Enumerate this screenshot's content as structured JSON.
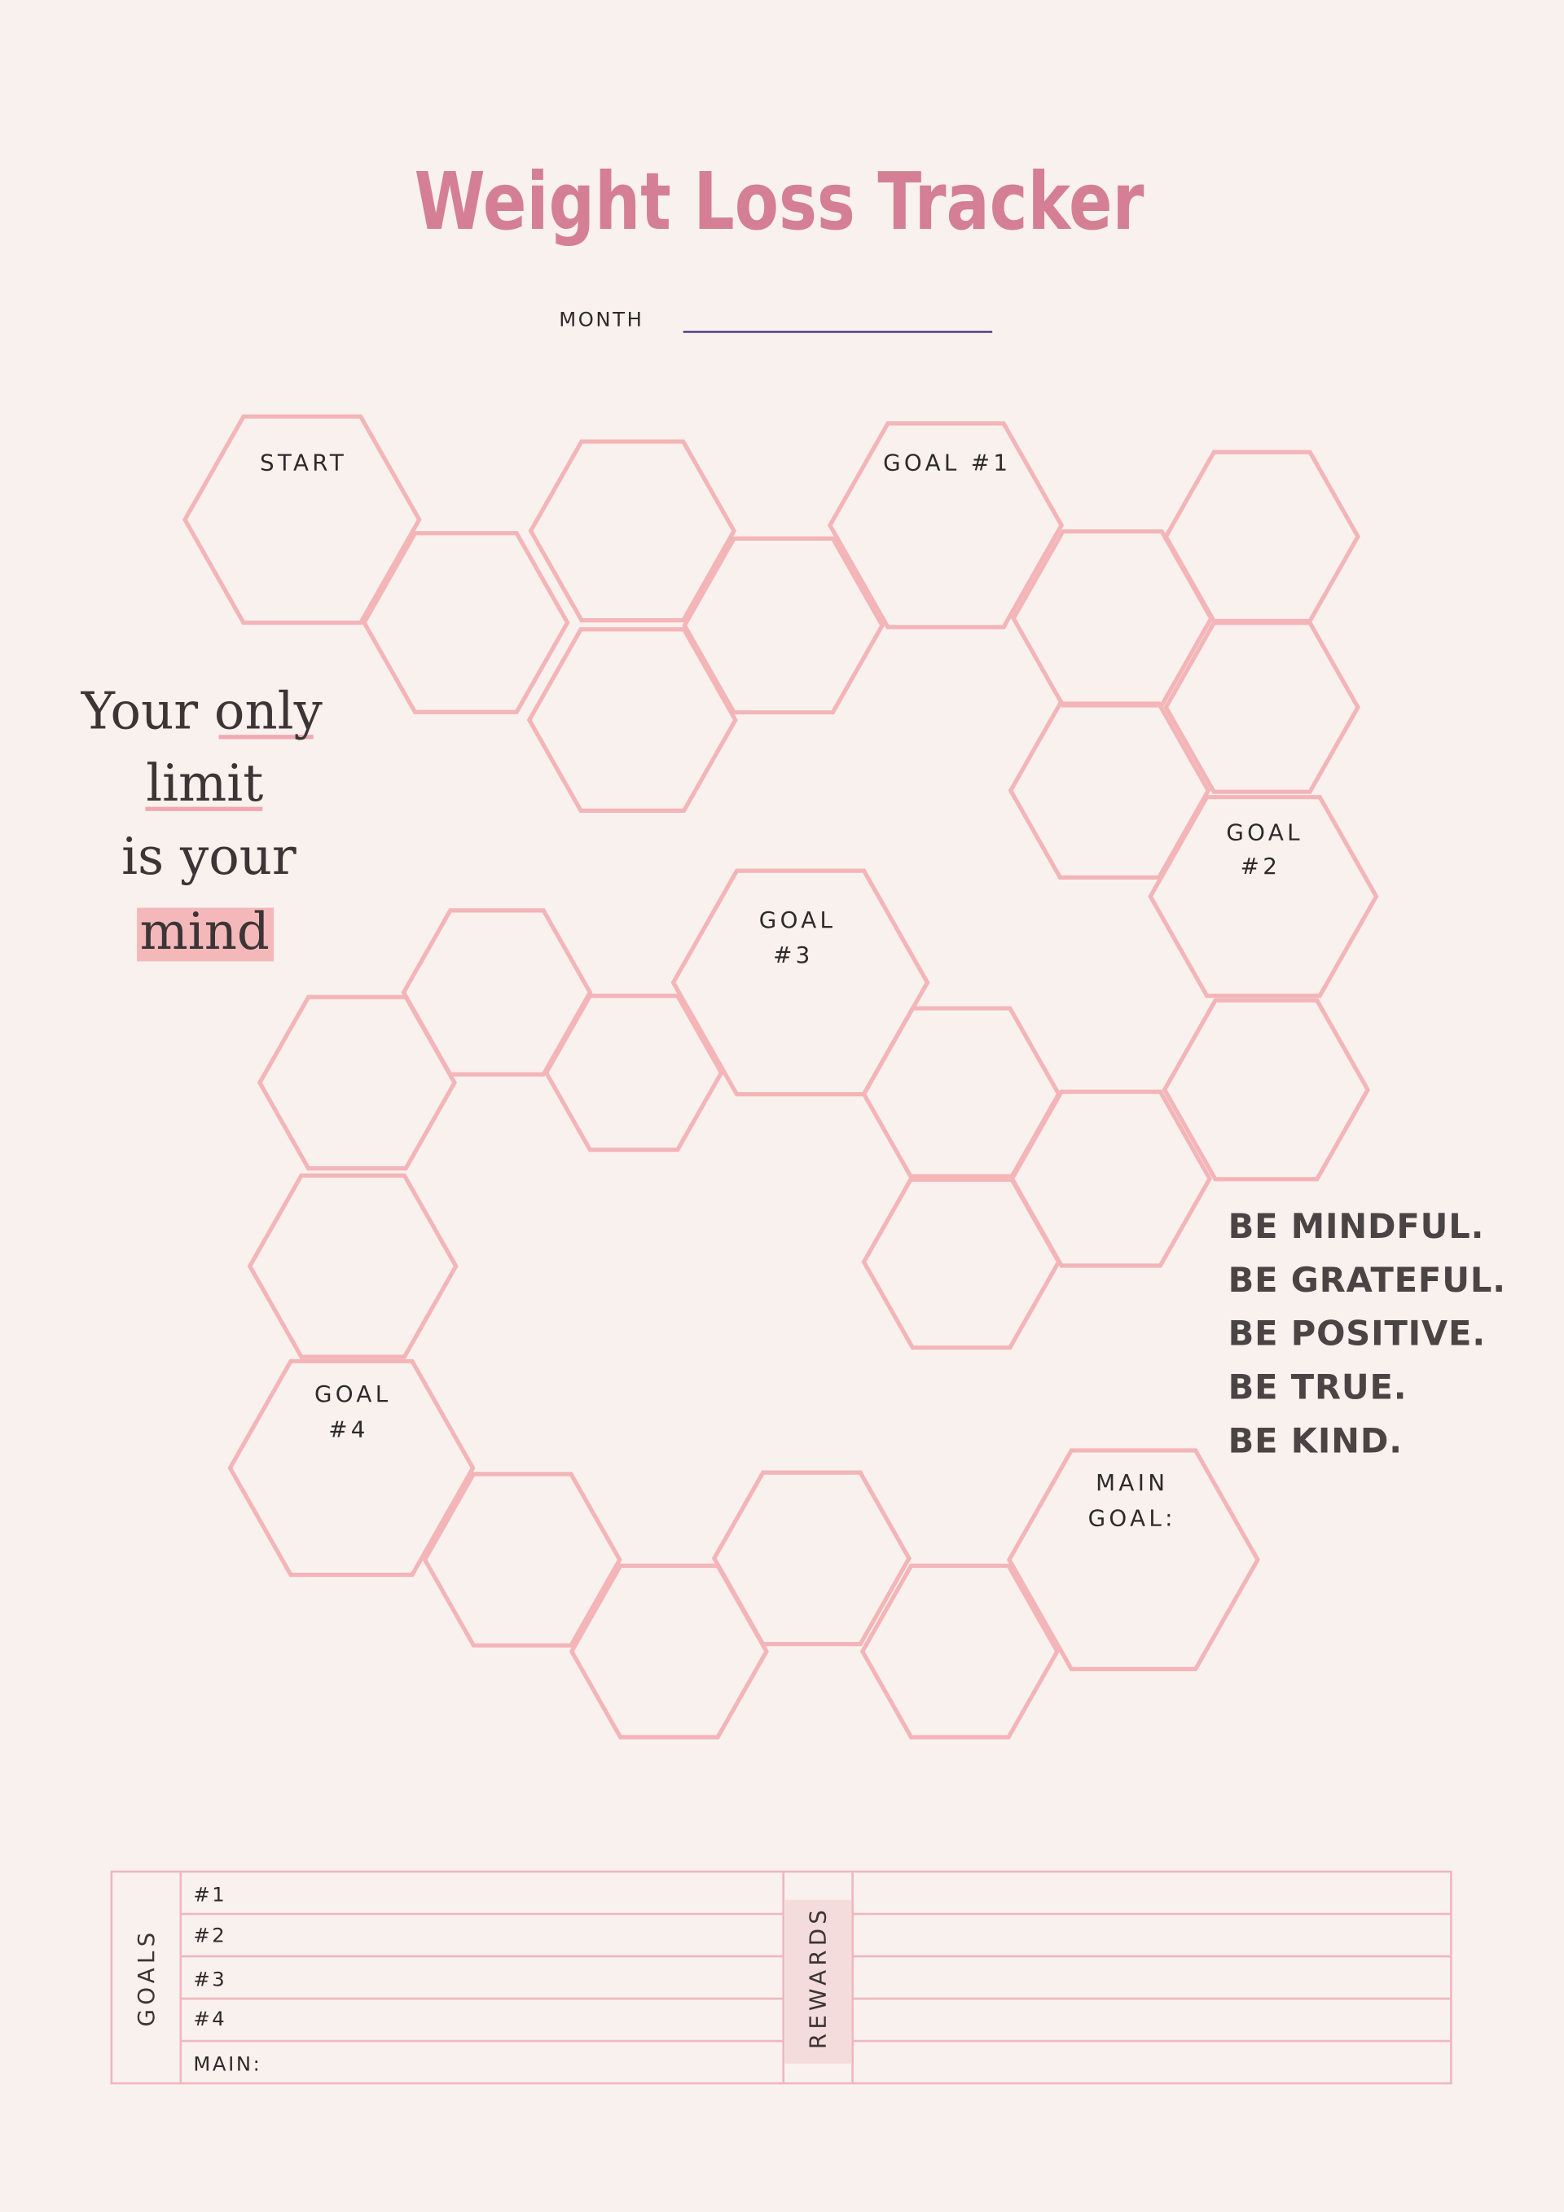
{
  "header": {
    "title": "Weight Loss Tracker",
    "month_label": "MONTH"
  },
  "hex_labels": {
    "start": [
      "START"
    ],
    "goal_1": [
      "GOAL #1"
    ],
    "goal_2": [
      "GOAL",
      "#2"
    ],
    "goal_3": [
      "GOAL",
      "#3"
    ],
    "goal_4": [
      "GOAL",
      "#4"
    ],
    "main_goal": [
      "MAIN",
      "GOAL:"
    ]
  },
  "quote": [
    "Your only",
    "limit",
    "is your",
    "mind"
  ],
  "affirmations": [
    "BE MINDFUL.",
    "BE GRATEFUL.",
    "BE POSITIVE.",
    "BE TRUE.",
    "BE KIND."
  ],
  "table": {
    "goals_header": "GOALS",
    "goal_rows": [
      "#1",
      "#2",
      "#3",
      "#4",
      "MAIN:"
    ],
    "rewards_header": "REWARDS"
  }
}
